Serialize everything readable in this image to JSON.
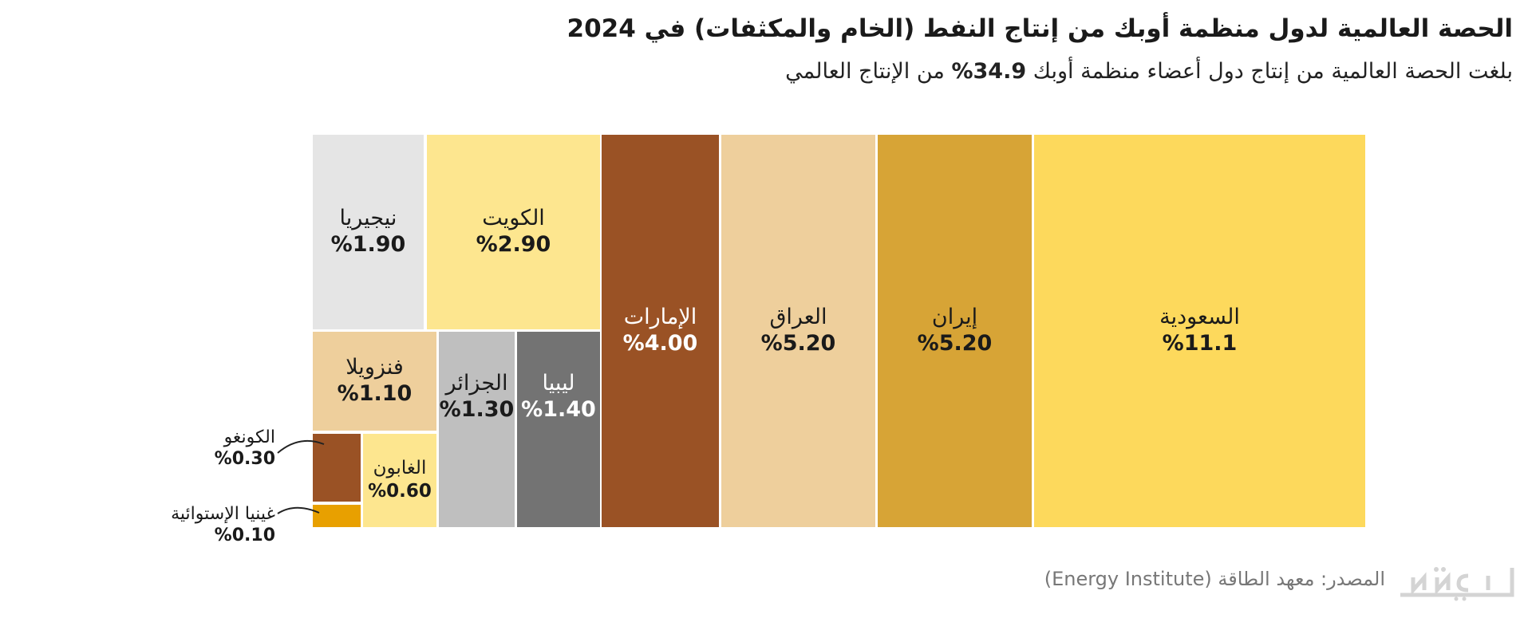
{
  "header": {
    "title": "الحصة العالمية لدول منظمة أوبك من إنتاج النفط (الخام والمكثفات) في 2024",
    "subtitle_pre": "بلغت الحصة العالمية من إنتاج دول أعضاء منظمة أوبك",
    "subtitle_value": "34.9%",
    "subtitle_post": "من الإنتاج العالمي"
  },
  "chart_data": {
    "type": "treemap",
    "unit": "%",
    "items": [
      {
        "name": "السعودية",
        "value": 11.1,
        "label": "%11.1",
        "color": "#fdd95c"
      },
      {
        "name": "إيران",
        "value": 5.2,
        "label": "%5.20",
        "color": "#d7a436"
      },
      {
        "name": "العراق",
        "value": 5.2,
        "label": "%5.20",
        "color": "#eecf9c"
      },
      {
        "name": "الإمارات",
        "value": 4.0,
        "label": "%4.00",
        "color": "#9a5225"
      },
      {
        "name": "الكويت",
        "value": 2.9,
        "label": "%2.90",
        "color": "#fde68f"
      },
      {
        "name": "نيجيريا",
        "value": 1.9,
        "label": "%1.90",
        "color": "#e5e5e5"
      },
      {
        "name": "ليبيا",
        "value": 1.4,
        "label": "%1.40",
        "color": "#737373"
      },
      {
        "name": "الجزائر",
        "value": 1.3,
        "label": "%1.30",
        "color": "#bfbfbf"
      },
      {
        "name": "فنزويلا",
        "value": 1.1,
        "label": "%1.10",
        "color": "#eecf9c"
      },
      {
        "name": "الغابون",
        "value": 0.6,
        "label": "%0.60",
        "color": "#fde68f"
      },
      {
        "name": "الكونغو",
        "value": 0.3,
        "label": "%0.30",
        "color": "#9a5225"
      },
      {
        "name": "غينيا الإستوائية",
        "value": 0.1,
        "label": "%0.10",
        "color": "#e8a000"
      }
    ]
  },
  "footer": {
    "source": "المصدر: معهد الطاقة (Energy Institute)",
    "logo_text": "CNN العربية"
  }
}
